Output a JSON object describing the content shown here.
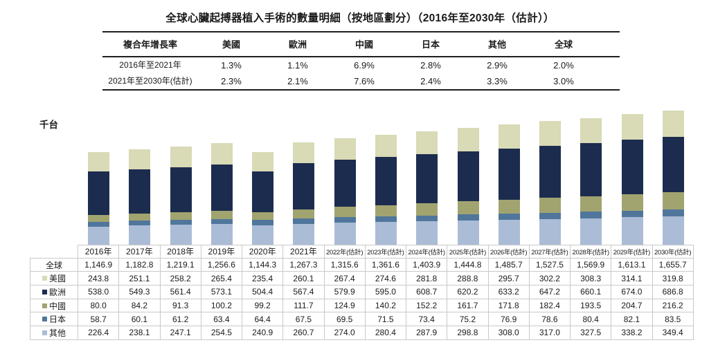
{
  "title": "全球心臟起搏器植入手術的數量明細（按地區劃分）（2016年至2030年（估計））",
  "cagr_table": {
    "header": [
      "複合年增長率",
      "美國",
      "歐洲",
      "中國",
      "日本",
      "其他",
      "全球"
    ],
    "rows": [
      {
        "label": "2016年至2021年",
        "values": [
          "1.3%",
          "1.1%",
          "6.9%",
          "2.8%",
          "2.9%",
          "2.0%"
        ]
      },
      {
        "label": "2021年至2030年(估計)",
        "values": [
          "2.3%",
          "2.1%",
          "7.6%",
          "2.4%",
          "3.3%",
          "3.0%"
        ]
      }
    ]
  },
  "chart_data": {
    "type": "bar",
    "stacked": true,
    "title": "全球心臟起搏器植入手術的數量明細（按地區劃分）（2016年至2030年（估計））",
    "unit_label": "千台",
    "categories": [
      "2016年",
      "2017年",
      "2018年",
      "2019年",
      "2020年",
      "2021年",
      "2022年(估計)",
      "2023年(估計)",
      "2024年(估計)",
      "2025年(估計)",
      "2026年(估計)",
      "2027年(估計)",
      "2028年(估計)",
      "2029年(估計)",
      "2030年(估計)"
    ],
    "series": [
      {
        "name": "其他",
        "color": "#abbcd6",
        "values": [
          226.4,
          238.1,
          247.1,
          254.5,
          240.9,
          260.7,
          274.0,
          280.4,
          287.9,
          298.8,
          308.0,
          317.0,
          327.5,
          338.2,
          349.4
        ]
      },
      {
        "name": "日本",
        "color": "#50769c",
        "values": [
          58.7,
          60.1,
          61.2,
          63.4,
          64.4,
          67.5,
          69.5,
          71.5,
          73.4,
          75.2,
          76.9,
          78.6,
          80.4,
          82.1,
          83.5
        ]
      },
      {
        "name": "中國",
        "color": "#a2a470",
        "values": [
          80.0,
          84.2,
          91.3,
          100.2,
          99.2,
          111.7,
          124.9,
          140.2,
          152.2,
          161.7,
          171.8,
          182.4,
          193.5,
          204.7,
          216.2
        ]
      },
      {
        "name": "歐洲",
        "color": "#1c2c4f",
        "values": [
          538.0,
          549.3,
          561.4,
          573.1,
          504.4,
          567.4,
          579.9,
          595.0,
          608.7,
          620.2,
          633.2,
          647.2,
          660.1,
          674.0,
          686.8
        ]
      },
      {
        "name": "美國",
        "color": "#d9dab6",
        "values": [
          243.8,
          251.1,
          258.2,
          265.4,
          235.4,
          260.1,
          267.4,
          274.6,
          281.8,
          288.8,
          295.7,
          302.2,
          308.3,
          314.1,
          319.8
        ]
      }
    ],
    "totals": {
      "name": "全球",
      "values": [
        1146.9,
        1182.8,
        1219.1,
        1256.6,
        1144.3,
        1267.3,
        1315.6,
        1361.6,
        1403.9,
        1444.8,
        1485.7,
        1527.5,
        1569.9,
        1613.1,
        1655.7
      ]
    },
    "ylim": [
      0,
      1745
    ],
    "gridlines": false,
    "legend_position": "table-row-labels"
  },
  "data_table": {
    "corner": "",
    "columns": [
      "2016年",
      "2017年",
      "2018年",
      "2019年",
      "2020年",
      "2021年",
      "2022年(估計)",
      "2023年(估計)",
      "2024年(估計)",
      "2025年(估計)",
      "2026年(估計)",
      "2027年(估計)",
      "2028年(估計)",
      "2029年(估計)",
      "2030年(估計)"
    ],
    "rows": [
      {
        "label": "全球",
        "swatch": null,
        "values": [
          "1,146.9",
          "1,182.8",
          "1,219.1",
          "1,256.6",
          "1,144.3",
          "1,267.3",
          "1,315.6",
          "1,361.6",
          "1,403.9",
          "1,444.8",
          "1,485.7",
          "1,527.5",
          "1,569.9",
          "1,613.1",
          "1,655.7"
        ]
      },
      {
        "label": "美國",
        "swatch": "#d9dab6",
        "values": [
          "243.8",
          "251.1",
          "258.2",
          "265.4",
          "235.4",
          "260.1",
          "267.4",
          "274.6",
          "281.8",
          "288.8",
          "295.7",
          "302.2",
          "308.3",
          "314.1",
          "319.8"
        ]
      },
      {
        "label": "歐洲",
        "swatch": "#1c2c4f",
        "values": [
          "538.0",
          "549.3",
          "561.4",
          "573.1",
          "504.4",
          "567.4",
          "579.9",
          "595.0",
          "608.7",
          "620.2",
          "633.2",
          "647.2",
          "660.1",
          "674.0",
          "686.8"
        ]
      },
      {
        "label": "中國",
        "swatch": "#a2a470",
        "values": [
          "80.0",
          "84.2",
          "91.3",
          "100.2",
          "99.2",
          "111.7",
          "124.9",
          "140.2",
          "152.2",
          "161.7",
          "171.8",
          "182.4",
          "193.5",
          "204.7",
          "216.2"
        ]
      },
      {
        "label": "日本",
        "swatch": "#50769c",
        "values": [
          "58.7",
          "60.1",
          "61.2",
          "63.4",
          "64.4",
          "67.5",
          "69.5",
          "71.5",
          "73.4",
          "75.2",
          "76.9",
          "78.6",
          "80.4",
          "82.1",
          "83.5"
        ]
      },
      {
        "label": "其他",
        "swatch": "#abbcd6",
        "values": [
          "226.4",
          "238.1",
          "247.1",
          "254.5",
          "240.9",
          "260.7",
          "274.0",
          "280.4",
          "287.9",
          "298.8",
          "308.0",
          "317.0",
          "327.5",
          "338.2",
          "349.4"
        ]
      }
    ]
  }
}
